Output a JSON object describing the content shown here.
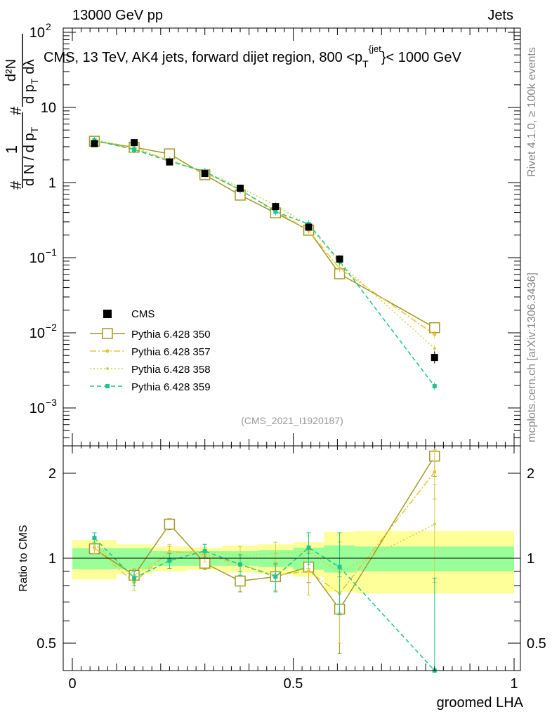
{
  "header": {
    "left": "13000 GeV pp",
    "right": "Jets"
  },
  "side": {
    "top": "Rivet 4.1.0, ≥ 100k events",
    "bottom": "mcplots.cern.ch [arXiv:1306.3436]"
  },
  "chart_data": {
    "type": "line",
    "title": "CMS, 13 TeV, AK4 jets, forward dijet region, 800 <p_T^{jet}< 1000 GeV",
    "title_parts": {
      "main": "CMS, 13 TeV, AK4 jets, forward dijet region, 800 <p",
      "sub": "T",
      "sup": "{jet",
      "tail": "}< 1000 GeV"
    },
    "analysis_tag": "(CMS_2021_I1920187)",
    "ylabel_upper": {
      "frac1_num": "1",
      "frac1_den": "d N / d p",
      "frac1_den_sub": "T",
      "frac2_num": "d²N",
      "frac2_den": "d p",
      "frac2_den_sub": "T",
      "frac2_den_tail": "dλ",
      "hash": "#"
    },
    "ylabel_lower": "Ratio to CMS",
    "xlabel": "groomed LHA",
    "xlim": [
      0,
      1
    ],
    "ylim_main": [
      0.0003,
      150
    ],
    "ylim_ratio": [
      0.35,
      2.3
    ],
    "x_ticks": [
      "0",
      "0.5",
      "1"
    ],
    "y_ticks_main": [
      {
        "base": "10",
        "exp": "2"
      },
      {
        "base": "10",
        "exp": ""
      },
      {
        "base": "1",
        "exp": ""
      },
      {
        "base": "10",
        "exp": "−1"
      },
      {
        "base": "10",
        "exp": "−2"
      },
      {
        "base": "10",
        "exp": "−3"
      }
    ],
    "y_ticks_ratio": [
      "2",
      "1",
      "0.5"
    ],
    "bin_edges": [
      0,
      0.1,
      0.18,
      0.26,
      0.34,
      0.42,
      0.5,
      0.57,
      0.64,
      1.0
    ],
    "x": [
      0.05,
      0.14,
      0.22,
      0.3,
      0.38,
      0.46,
      0.535,
      0.605,
      0.82
    ],
    "data": {
      "name": "CMS",
      "values": [
        3.3,
        3.4,
        1.88,
        1.32,
        0.84,
        0.48,
        0.255,
        0.096,
        0.0047
      ],
      "err_frac": [
        0.06,
        0.05,
        0.05,
        0.05,
        0.06,
        0.06,
        0.08,
        0.12,
        0.2
      ],
      "color": "#000000"
    },
    "band_inner": [
      0.085,
      0.085,
      0.06,
      0.06,
      0.06,
      0.07,
      0.09,
      0.11,
      0.1
    ],
    "band_outer": [
      0.16,
      0.12,
      0.1,
      0.09,
      0.11,
      0.12,
      0.14,
      0.24,
      0.25
    ],
    "band_colors": {
      "inner": "#99ff99",
      "outer": "#ffff99"
    },
    "series": [
      {
        "name": "Pythia 6.428 350",
        "color": "#a09a26",
        "dash": "",
        "marker": "open-square",
        "values": [
          3.55,
          2.95,
          2.41,
          1.27,
          0.68,
          0.395,
          0.232,
          0.061,
          0.0117
        ],
        "ratio": [
          1.08,
          0.87,
          1.32,
          0.96,
          0.83,
          0.86,
          0.93,
          0.66,
          2.3
        ],
        "ratio_err": [
          0.04,
          0.04,
          0.06,
          0.05,
          0.07,
          0.09,
          0.11,
          0.2,
          0.35
        ]
      },
      {
        "name": "Pythia 6.428 357",
        "color": "#e8c43a",
        "dash": "9,3,2,3",
        "marker": "star",
        "values": [
          3.6,
          2.8,
          2.0,
          1.36,
          0.8,
          0.42,
          0.23,
          0.072,
          0.0095
        ],
        "ratio": [
          1.09,
          0.82,
          1.06,
          1.03,
          0.95,
          0.87,
          0.9,
          0.75,
          2.02
        ],
        "ratio_err": [
          0.05,
          0.05,
          0.06,
          0.06,
          0.08,
          0.1,
          0.16,
          0.25,
          0.4
        ]
      },
      {
        "name": "Pythia 6.428 358",
        "color": "#c8d44a",
        "dash": "2,3",
        "marker": "dot",
        "values": [
          3.7,
          2.95,
          1.95,
          1.4,
          0.86,
          0.5,
          0.27,
          0.085,
          0.0062
        ],
        "ratio": [
          1.12,
          0.87,
          1.04,
          1.06,
          1.02,
          1.04,
          1.06,
          0.89,
          1.32
        ],
        "ratio_err": [
          0.05,
          0.05,
          0.06,
          0.06,
          0.08,
          0.1,
          0.14,
          0.25,
          0.5
        ]
      },
      {
        "name": "Pythia 6.428 359",
        "color": "#1fc48e",
        "dash": "6,4",
        "marker": "filled-square",
        "values": [
          3.65,
          2.75,
          1.92,
          1.4,
          0.8,
          0.41,
          0.28,
          0.09,
          0.00195
        ],
        "ratio": [
          1.18,
          0.85,
          0.98,
          1.06,
          0.95,
          0.86,
          1.09,
          0.93,
          0.35
        ],
        "ratio_err": [
          0.05,
          0.05,
          0.06,
          0.06,
          0.08,
          0.1,
          0.14,
          0.3,
          0.5
        ]
      }
    ],
    "legend": {
      "data_label": "CMS",
      "placement": "center-left",
      "entries": [
        "Pythia 6.428 350",
        "Pythia 6.428 357",
        "Pythia 6.428 358",
        "Pythia 6.428 359"
      ]
    }
  }
}
